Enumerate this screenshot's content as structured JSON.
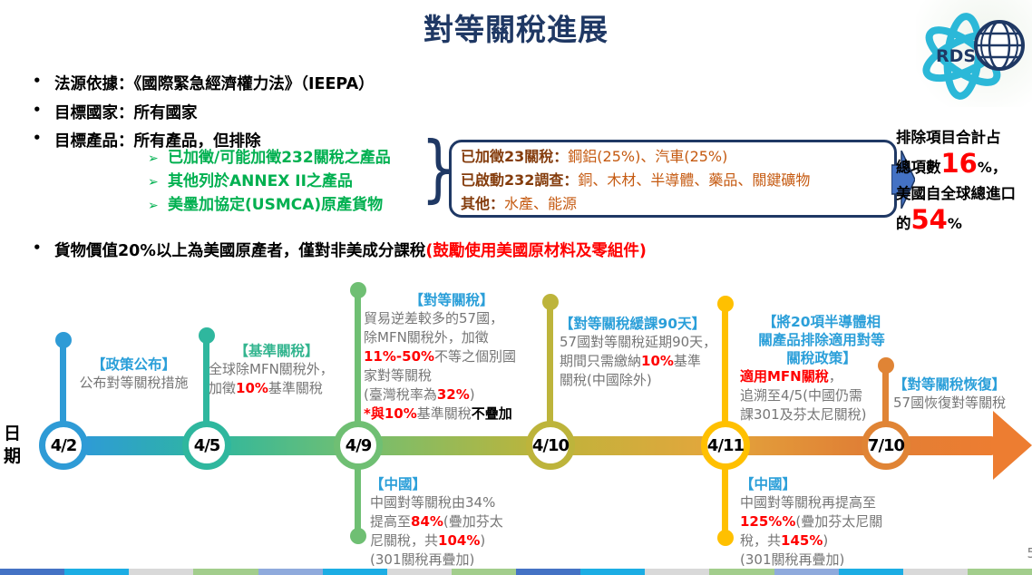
{
  "page": {
    "title": "對等關稅進展",
    "page_number": "5"
  },
  "logo": {
    "text": "RDSC"
  },
  "bullets": {
    "b1": "法源依據：《國際緊急經濟權力法》（IEEPA）",
    "b2": "目標國家：所有國家",
    "b3": "目標產品：所有產品，但排除",
    "sub": [
      "已加徵/可能加徵232關稅之產品",
      "其他列於ANNEX II之產品",
      "美墨加協定(USMCA)原產貨物"
    ],
    "b4": [
      [
        {
          "t": "貨物價值20%以上為美國原產者，僅對非美成分課稅",
          "c": "blk"
        },
        {
          "t": "(鼓勵使用美國原材料及零組件)",
          "c": "red"
        }
      ]
    ]
  },
  "tariff_box": {
    "lines": [
      [
        {
          "t": "已加徵23關稅：",
          "c": "lbl"
        },
        {
          "t": "鋼鋁(25%)、汽車(25%)",
          "c": "val"
        }
      ],
      [
        {
          "t": "已啟動232調查：",
          "c": "lbl"
        },
        {
          "t": "銅、木材、半導體、藥品、關鍵礦物",
          "c": "val"
        }
      ],
      [
        {
          "t": "其他：",
          "c": "lbl"
        },
        {
          "t": "水產、能源",
          "c": "val"
        }
      ]
    ]
  },
  "exclusion_note": {
    "lines": [
      [
        {
          "t": "排除項目",
          "c": "blk"
        },
        {
          "t": "合計占"
        }
      ],
      [
        {
          "t": "總項數"
        },
        {
          "t": "16",
          "c": "bignum"
        },
        {
          "t": "%",
          "c": "pct"
        },
        {
          "t": "，"
        }
      ],
      [
        {
          "t": "美國自全球總進口"
        }
      ],
      [
        {
          "t": "的"
        },
        {
          "t": "54",
          "c": "bignum"
        },
        {
          "t": "%",
          "c": "pct"
        }
      ]
    ]
  },
  "timeline": {
    "axis_label": "日期",
    "nodes": [
      {
        "date": "4/2",
        "color": "#2E9BD6"
      },
      {
        "date": "4/5",
        "color": "#2FB79E"
      },
      {
        "date": "4/9",
        "color": "#6FBF73"
      },
      {
        "date": "4/10",
        "color": "#BDB43B"
      },
      {
        "date": "4/11",
        "color": "#FFC000"
      },
      {
        "date": "7/10",
        "color": "#E08435"
      }
    ],
    "ann42": {
      "header": "【政策公布】",
      "body": [
        [
          {
            "t": "公布對等關稅措施"
          }
        ]
      ]
    },
    "ann45": {
      "header": "【基準關稅】",
      "body": [
        [
          {
            "t": "全球除MFN關稅外，"
          }
        ],
        [
          {
            "t": "加徵"
          },
          {
            "t": "10%",
            "c": "red"
          },
          {
            "t": "基準關稅"
          }
        ]
      ]
    },
    "ann49": {
      "header": "【對等關稅】",
      "body": [
        [
          {
            "t": "貿易逆差較多的57國，"
          }
        ],
        [
          {
            "t": "除MFN關稅外，加徵"
          }
        ],
        [
          {
            "t": "11%-50%",
            "c": "red"
          },
          {
            "t": "不等之個別國"
          }
        ],
        [
          {
            "t": "家對等關稅"
          }
        ],
        [
          {
            "t": "(臺灣稅率為"
          },
          {
            "t": "32%",
            "c": "red"
          },
          {
            "t": ")"
          }
        ],
        [
          {
            "t": "*與10%",
            "c": "red"
          },
          {
            "t": "基準關稅"
          },
          {
            "t": "不疊加",
            "c": "blk"
          }
        ]
      ]
    },
    "ann410": {
      "header": "【對等關稅緩課90天】",
      "body": [
        [
          {
            "t": "57國對等關稅延期90天，"
          }
        ],
        [
          {
            "t": "期間只需繳納"
          },
          {
            "t": "10%",
            "c": "red"
          },
          {
            "t": "基準"
          }
        ],
        [
          {
            "t": "關稅(中國除外)"
          }
        ]
      ]
    },
    "ann411": {
      "header_lines": [
        [
          {
            "t": "【將20項半導體相"
          }
        ],
        [
          {
            "t": "關產品排除適用對等"
          }
        ],
        [
          {
            "t": "關稅政策】"
          }
        ]
      ],
      "body": [
        [
          {
            "t": "適用MFN關稅",
            "c": "red"
          },
          {
            "t": "，"
          }
        ],
        [
          {
            "t": "追溯至4/5(中國仍需"
          }
        ],
        [
          {
            "t": "課301及芬太尼關稅)"
          }
        ]
      ]
    },
    "ann710": {
      "header": "【對等關稅恢復】",
      "body": [
        [
          {
            "t": "57國恢復對等關稅"
          }
        ]
      ]
    },
    "ann49b": {
      "header": "【中國】",
      "body": [
        [
          {
            "t": "中國對等關稅由34%"
          }
        ],
        [
          {
            "t": "提高至"
          },
          {
            "t": "84%",
            "c": "red"
          },
          {
            "t": "(疊加芬太"
          }
        ],
        [
          {
            "t": "尼關稅，共"
          },
          {
            "t": "104%",
            "c": "red"
          },
          {
            "t": ")"
          }
        ],
        [
          {
            "t": "(301關稅再疊加)"
          }
        ]
      ]
    },
    "ann411b": {
      "header": "【中國】",
      "body": [
        [
          {
            "t": "中國對等關稅再提高至"
          }
        ],
        [
          {
            "t": "125%%",
            "c": "red"
          },
          {
            "t": "(疊加芬太尼關"
          }
        ],
        [
          {
            "t": "稅，共"
          },
          {
            "t": "145%",
            "c": "red"
          },
          {
            "t": ")"
          }
        ],
        [
          {
            "t": "(301關稅再疊加)"
          }
        ]
      ]
    }
  },
  "colors": {
    "title_navy": "#1F3864",
    "green_bullet": "#00B050",
    "red_highlight": "#FF0000",
    "header_blue": "#2B9FD9",
    "header_green": "#33B58F",
    "box_label_brown": "#843C0C",
    "box_value_brown": "#C55A11",
    "arrow_blue": "#4472C4",
    "logo_cyan": "#2BB8D8"
  },
  "footer_bar": [
    "#4472C4",
    "#1CADE4",
    "#D9D9D9",
    "#A2CD8C",
    "#8FAADC",
    "#1CADE4",
    "#D9D9D9",
    "#A2CD8C",
    "#4472C4",
    "#1CADE4",
    "#D9D9D9",
    "#A2CD8C",
    "#8FAADC",
    "#1CADE4",
    "#D9D9D9",
    "#A2CD8C"
  ]
}
